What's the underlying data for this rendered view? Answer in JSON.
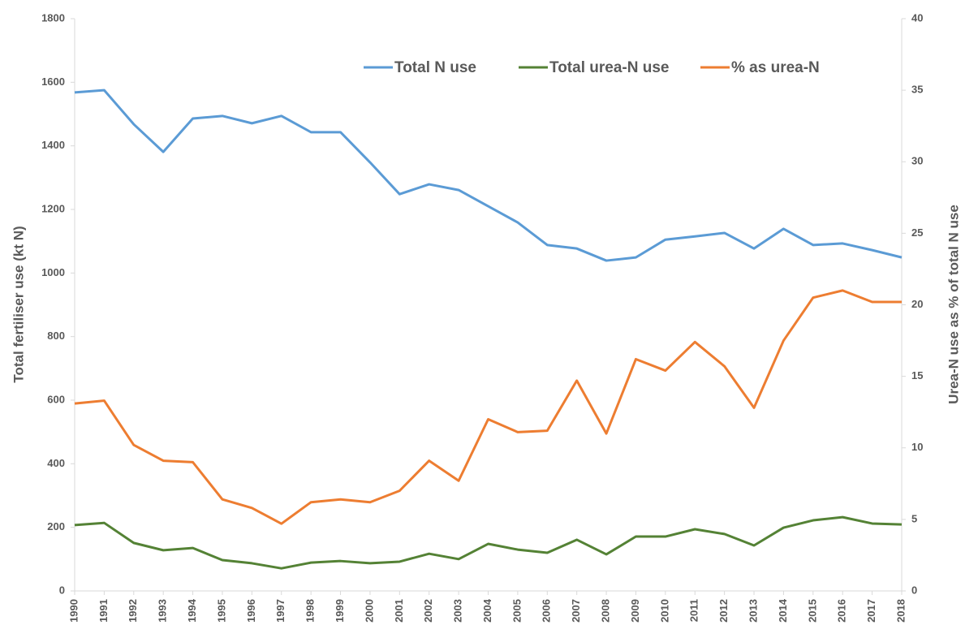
{
  "chart_data": {
    "type": "line",
    "categories": [
      "1990",
      "1991",
      "1992",
      "1993",
      "1994",
      "1995",
      "1996",
      "1997",
      "1998",
      "1999",
      "2000",
      "2001",
      "2002",
      "2003",
      "2004",
      "2005",
      "2006",
      "2007",
      "2008",
      "2009",
      "2010",
      "2011",
      "2012",
      "2013",
      "2014",
      "2015",
      "2016",
      "2017",
      "2018"
    ],
    "y_label": "Total fertiliser use (kt N)",
    "y2_label": "Urea-N use as % of total N use",
    "ylim": [
      0,
      1800
    ],
    "yticks": [
      0,
      200,
      400,
      600,
      800,
      1000,
      1200,
      1400,
      1600,
      1800
    ],
    "y2lim": [
      0,
      40
    ],
    "y2ticks": [
      0,
      5,
      10,
      15,
      20,
      25,
      30,
      35,
      40
    ],
    "grid": false,
    "legend": "top",
    "series": [
      {
        "name": "Total N use",
        "color": "#5b9bd5",
        "axis": "y",
        "values": [
          1568,
          1575,
          1468,
          1381,
          1486,
          1494,
          1471,
          1494,
          1443,
          1443,
          1348,
          1248,
          1279,
          1261,
          1210,
          1159,
          1088,
          1077,
          1039,
          1049,
          1105,
          1115,
          1126,
          1077,
          1139,
          1088,
          1093,
          1072,
          1049
        ]
      },
      {
        "name": "Total urea-N use",
        "color": "#548235",
        "axis": "y",
        "values": [
          207,
          214,
          151,
          128,
          135,
          97,
          87,
          71,
          89,
          94,
          87,
          92,
          117,
          100,
          148,
          130,
          120,
          161,
          115,
          171,
          171,
          194,
          179,
          143,
          199,
          222,
          232,
          212,
          209
        ]
      },
      {
        "name": "% as urea-N",
        "color": "#ed7d31",
        "axis": "y2",
        "values": [
          13.1,
          13.3,
          10.2,
          9.1,
          9.0,
          6.4,
          5.8,
          4.7,
          6.2,
          6.4,
          6.2,
          7.0,
          9.1,
          7.7,
          12.0,
          11.1,
          11.2,
          14.7,
          11.0,
          16.2,
          15.4,
          17.4,
          15.7,
          12.8,
          17.5,
          20.5,
          21.0,
          20.2,
          20.2
        ]
      }
    ]
  }
}
